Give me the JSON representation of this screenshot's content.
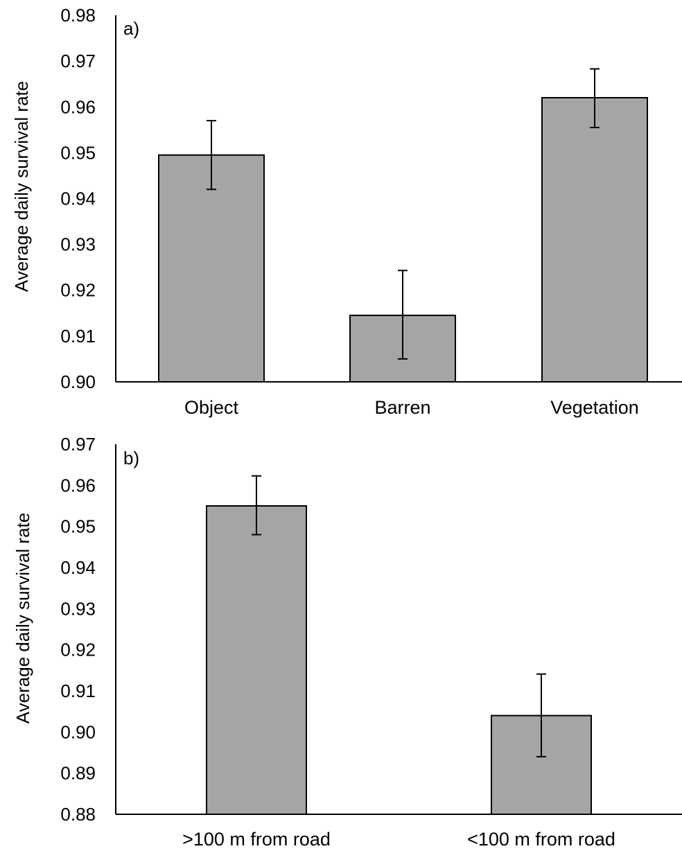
{
  "colors": {
    "bar_fill": "#a5a5a5",
    "bar_stroke": "#000000",
    "axis": "#000000"
  },
  "chart_data": [
    {
      "type": "bar",
      "panel_label": "a)",
      "ylabel": "Average daily survival  rate",
      "ylim": [
        0.9,
        0.98
      ],
      "yticks": [
        "0.90",
        "0.91",
        "0.92",
        "0.93",
        "0.94",
        "0.95",
        "0.96",
        "0.97",
        "0.98"
      ],
      "categories": [
        "Object",
        "Barren",
        "Vegetation"
      ],
      "values": [
        0.9495,
        0.9145,
        0.962
      ],
      "error_low": [
        0.942,
        0.905,
        0.9555
      ],
      "error_high": [
        0.957,
        0.9243,
        0.9683
      ],
      "grid": false,
      "legend": false
    },
    {
      "type": "bar",
      "panel_label": "b)",
      "ylabel": "Average daily survival  rate",
      "ylim": [
        0.88,
        0.97
      ],
      "yticks": [
        "0.88",
        "0.89",
        "0.90",
        "0.91",
        "0.92",
        "0.93",
        "0.94",
        "0.95",
        "0.96",
        "0.97"
      ],
      "categories": [
        ">100 m from road",
        "<100 m from road"
      ],
      "values": [
        0.955,
        0.904
      ],
      "error_low": [
        0.948,
        0.894
      ],
      "error_high": [
        0.9623,
        0.9141
      ],
      "grid": false,
      "legend": false
    }
  ]
}
